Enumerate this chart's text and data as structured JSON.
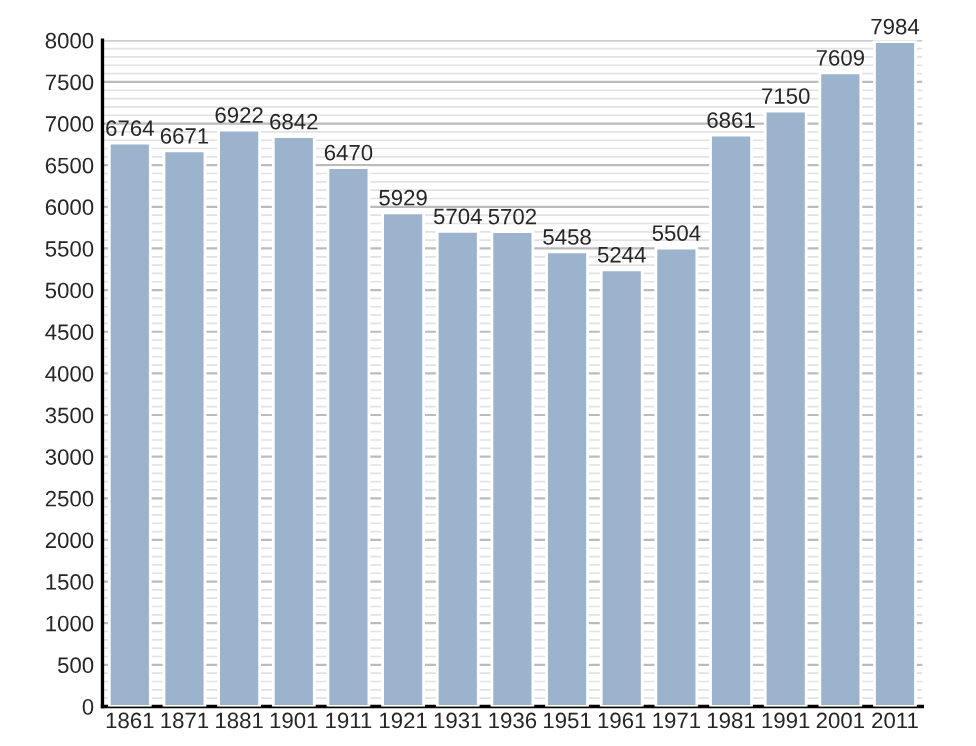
{
  "chart_data": {
    "type": "bar",
    "categories": [
      "1861",
      "1871",
      "1881",
      "1901",
      "1911",
      "1921",
      "1931",
      "1936",
      "1951",
      "1961",
      "1971",
      "1981",
      "1991",
      "2001",
      "2011"
    ],
    "values": [
      6764,
      6671,
      6922,
      6842,
      6470,
      5929,
      5704,
      5702,
      5458,
      5244,
      5504,
      6861,
      7150,
      7609,
      7984
    ],
    "color": "#9cb3cd",
    "ylim": [
      0,
      8000
    ],
    "yticks": [
      0,
      500,
      1000,
      1500,
      2000,
      2500,
      3000,
      3500,
      4000,
      4500,
      5000,
      5500,
      6000,
      6500,
      7000,
      7500,
      8000
    ],
    "grid": true,
    "data_labels": true
  }
}
